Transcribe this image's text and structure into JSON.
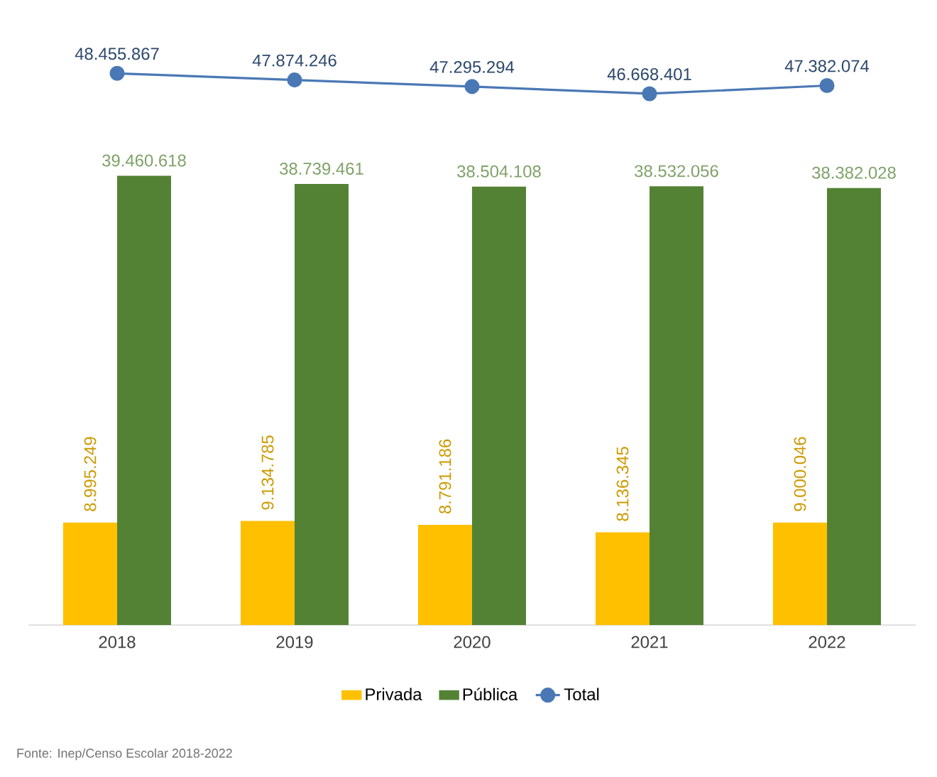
{
  "chart_data": {
    "type": "bar",
    "categories": [
      "2018",
      "2019",
      "2020",
      "2021",
      "2022"
    ],
    "series": [
      {
        "name": "Privada",
        "color": "#ffc000",
        "values": [
          8995249,
          9134785,
          8791186,
          8136345,
          9000046
        ],
        "value_labels": [
          "8.995.249",
          "9.134.785",
          "8.791.186",
          "8.136.345",
          "9.000.046"
        ]
      },
      {
        "name": "Pública",
        "color": "#548235",
        "values": [
          39460618,
          38739461,
          38504108,
          38532056,
          38382028
        ],
        "value_labels": [
          "39.460.618",
          "38.739.461",
          "38.504.108",
          "38.532.056",
          "38.382.028"
        ]
      },
      {
        "name": "Total",
        "type": "line",
        "marker": "circle",
        "color": "#4a78b5",
        "values": [
          48455867,
          47874246,
          47295294,
          46668401,
          47382074
        ],
        "value_labels": [
          "48.455.867",
          "47.874.246",
          "47.295.294",
          "46.668.401",
          "47.382.074"
        ]
      }
    ],
    "tick_labels": "x",
    "grid": false,
    "legend": "bottom",
    "annotations": [
      "Fonte: Inep/Censo Escolar 2018-2022"
    ]
  }
}
